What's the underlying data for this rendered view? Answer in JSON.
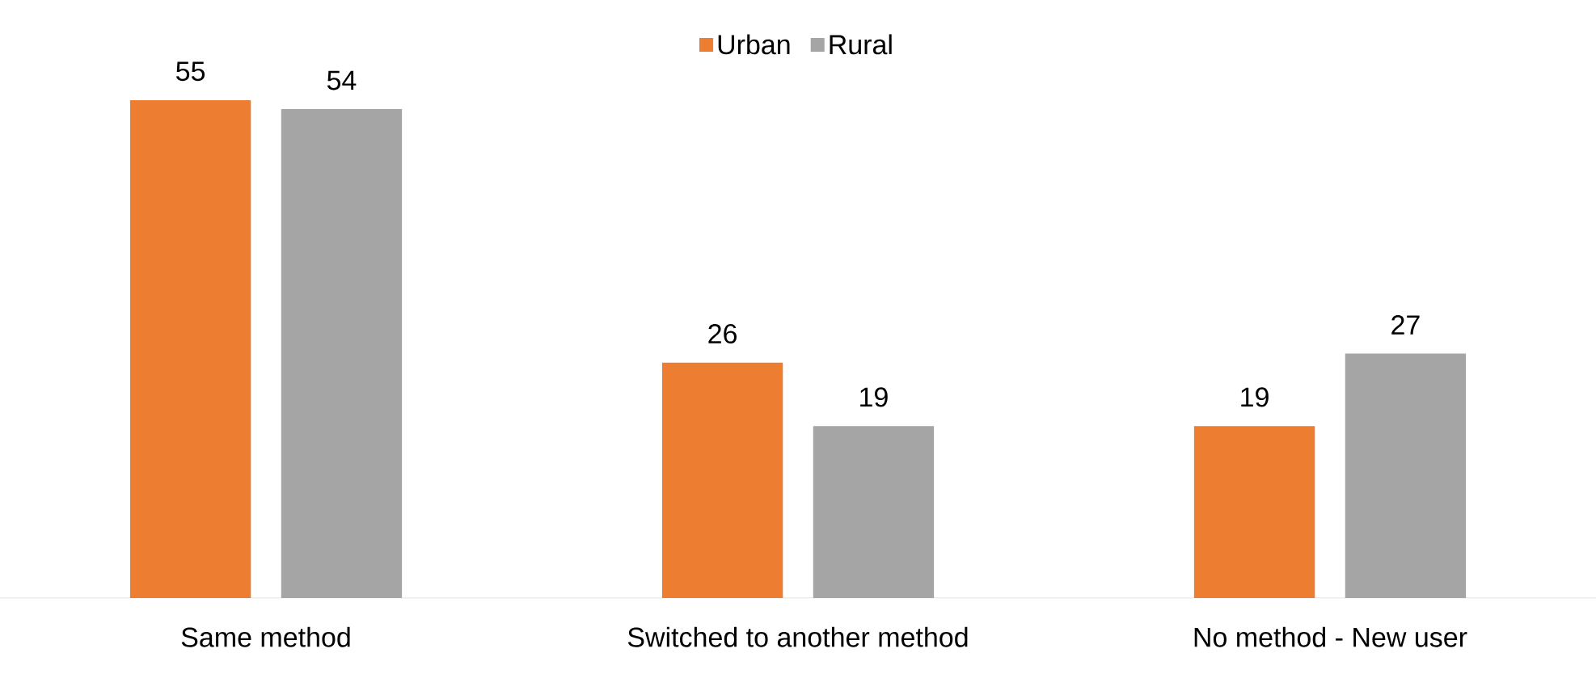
{
  "chart_data": {
    "type": "bar",
    "categories": [
      "Same method",
      "Switched to another method",
      "No method - New user"
    ],
    "series": [
      {
        "name": "Urban",
        "color": "#ed7d31",
        "values": [
          55,
          26,
          19
        ]
      },
      {
        "name": "Rural",
        "color": "#a5a5a5",
        "values": [
          54,
          19,
          27
        ]
      }
    ],
    "data_labels": true,
    "legend": "top"
  }
}
